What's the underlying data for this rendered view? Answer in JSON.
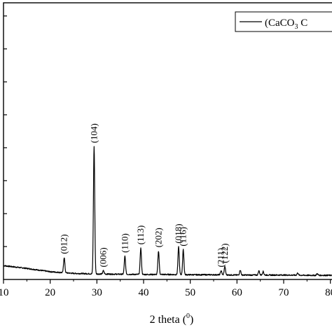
{
  "chart_data": {
    "type": "line",
    "title": "",
    "xlabel": "2 theta (0)",
    "xlabel_parts": {
      "main": "2 theta (",
      "sup": "0",
      "close": ")"
    },
    "ylabel": "",
    "xlim": [
      10,
      82
    ],
    "ylim": [
      0,
      100
    ],
    "grid": false,
    "x_ticks": [
      10,
      20,
      30,
      40,
      50,
      60,
      70,
      80
    ],
    "x_tick_labels": [
      "10",
      "20",
      "30",
      "40",
      "50",
      "60",
      "70",
      "80"
    ],
    "legend": {
      "placement": "top-right",
      "parts": {
        "pre": "(CaCO",
        "sub": "3",
        "post": " C"
      }
    },
    "series": [
      {
        "name": "(CaCO3 C",
        "color": "#000000",
        "baseline": [
          [
            10,
            5.0
          ],
          [
            15,
            4.0
          ],
          [
            20,
            2.8
          ],
          [
            25,
            2.2
          ],
          [
            30,
            2.0
          ],
          [
            35,
            1.9
          ],
          [
            40,
            1.8
          ],
          [
            45,
            1.8
          ],
          [
            50,
            1.7
          ],
          [
            55,
            1.7
          ],
          [
            60,
            1.6
          ],
          [
            65,
            1.6
          ],
          [
            70,
            1.6
          ],
          [
            75,
            1.5
          ],
          [
            82,
            1.5
          ]
        ],
        "peaks": [
          {
            "label": "(012)",
            "x": 23.0,
            "y": 5.5
          },
          {
            "label": "(104)",
            "x": 29.4,
            "y": 46.0
          },
          {
            "label": "(006)",
            "x": 31.4,
            "y": 1.2
          },
          {
            "label": "(110)",
            "x": 36.0,
            "y": 6.5
          },
          {
            "label": "(113)",
            "x": 39.4,
            "y": 9.5
          },
          {
            "label": "(202)",
            "x": 43.2,
            "y": 8.5
          },
          {
            "label": "(018)",
            "x": 47.5,
            "y": 10.0
          },
          {
            "label": "(116)",
            "x": 48.5,
            "y": 9.0
          },
          {
            "label": "(211)",
            "x": 56.6,
            "y": 1.5
          },
          {
            "label": "(122)",
            "x": 57.4,
            "y": 3.0
          },
          {
            "label": "",
            "x": 60.7,
            "y": 1.8
          },
          {
            "label": "",
            "x": 64.7,
            "y": 1.5
          },
          {
            "label": "",
            "x": 65.6,
            "y": 1.3
          },
          {
            "label": "",
            "x": 73.0,
            "y": 0.8
          },
          {
            "label": "",
            "x": 77.2,
            "y": 0.6
          }
        ]
      }
    ]
  }
}
